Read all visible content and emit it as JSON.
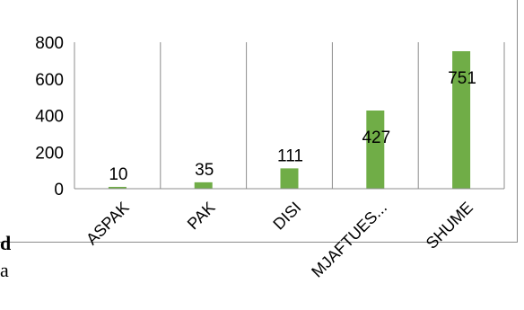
{
  "chart_data": {
    "type": "bar",
    "categories": [
      "ASPAK",
      "PAK",
      "DISI",
      "MJAFTUES...",
      "SHUME"
    ],
    "values": [
      10,
      35,
      111,
      427,
      751
    ],
    "data_labels": [
      "10",
      "35",
      "111",
      "427",
      "751"
    ],
    "y_ticks": [
      "0",
      "200",
      "400",
      "600",
      "800"
    ],
    "ylim": [
      0,
      800
    ],
    "title": "",
    "xlabel": "",
    "ylabel": "",
    "grid": "vertical-category-dividers",
    "bar_color": "#70ad47",
    "grid_color": "#8c8c8c"
  },
  "page_fragments": {
    "left_bold_char": "d",
    "left_char": "a"
  }
}
